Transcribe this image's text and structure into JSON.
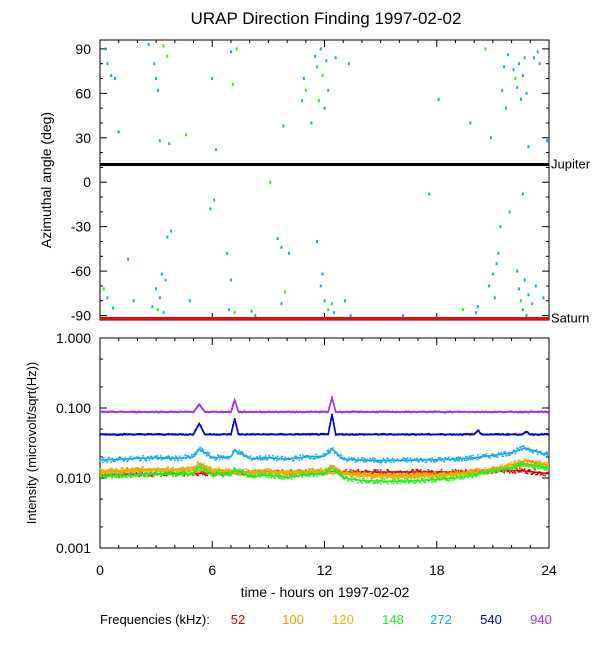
{
  "title": "URAP Direction Finding  1997-02-02",
  "chart_data": [
    {
      "type": "scatter",
      "ylabel": "Azimuthal angle (deg)",
      "xlim": [
        0,
        24
      ],
      "ylim": [
        -93,
        96
      ],
      "x_ticks": [
        0,
        6,
        12,
        18,
        24
      ],
      "y_ticks": [
        {
          "value": 90,
          "label": "90"
        },
        {
          "value": 60,
          "label": "60"
        },
        {
          "value": 30,
          "label": "30"
        },
        {
          "value": 0,
          "label": "0"
        },
        {
          "value": -30,
          "label": "-30"
        },
        {
          "value": -60,
          "label": "-60"
        },
        {
          "value": -90,
          "label": "-90"
        }
      ],
      "reference_lines": [
        {
          "label": "Jupiter",
          "value": 12,
          "color": "#000000"
        },
        {
          "label": "Saturn",
          "value": -92,
          "color": "#ff0000"
        }
      ],
      "points": [
        [
          0.3,
          90,
          "cyan"
        ],
        [
          0.4,
          80,
          "cyan"
        ],
        [
          0.6,
          72,
          "cyan"
        ],
        [
          0.8,
          70,
          "cyan"
        ],
        [
          1.0,
          34,
          "cyan"
        ],
        [
          1.5,
          -52,
          "cyan"
        ],
        [
          1.8,
          -80,
          "cyan"
        ],
        [
          0.2,
          -72,
          "green"
        ],
        [
          0.4,
          -78,
          "cyan"
        ],
        [
          0.7,
          -85,
          "cyan"
        ],
        [
          2.6,
          93,
          "cyan"
        ],
        [
          2.9,
          80,
          "cyan"
        ],
        [
          3.0,
          70,
          "cyan"
        ],
        [
          3.1,
          62,
          "cyan"
        ],
        [
          3.2,
          28,
          "cyan"
        ],
        [
          3.4,
          92,
          "green"
        ],
        [
          3.6,
          85,
          "green"
        ],
        [
          3.7,
          26,
          "cyan"
        ],
        [
          3.8,
          -33,
          "cyan"
        ],
        [
          3.6,
          -37,
          "cyan"
        ],
        [
          3.3,
          -62,
          "cyan"
        ],
        [
          3.5,
          -66,
          "cyan"
        ],
        [
          3.0,
          -72,
          "cyan"
        ],
        [
          3.2,
          -78,
          "cyan"
        ],
        [
          3.1,
          -86,
          "green"
        ],
        [
          3.4,
          -88,
          "cyan"
        ],
        [
          2.8,
          -84,
          "cyan"
        ],
        [
          4.6,
          32,
          "green"
        ],
        [
          4.8,
          -80,
          "cyan"
        ],
        [
          6.0,
          70,
          "cyan"
        ],
        [
          6.2,
          22,
          "cyan"
        ],
        [
          5.9,
          -18,
          "cyan"
        ],
        [
          6.1,
          -12,
          "cyan"
        ],
        [
          7.0,
          88,
          "cyan"
        ],
        [
          7.3,
          90,
          "green"
        ],
        [
          7.1,
          66,
          "green"
        ],
        [
          6.8,
          -48,
          "cyan"
        ],
        [
          7.0,
          -66,
          "cyan"
        ],
        [
          6.9,
          -86,
          "cyan"
        ],
        [
          7.2,
          -88,
          "green"
        ],
        [
          8.1,
          -87,
          "cyan"
        ],
        [
          8.3,
          -90,
          "cyan"
        ],
        [
          9.5,
          -38,
          "cyan"
        ],
        [
          9.7,
          -82,
          "cyan"
        ],
        [
          9.9,
          -74,
          "green"
        ],
        [
          9.8,
          38,
          "cyan"
        ],
        [
          9.7,
          -44,
          "cyan"
        ],
        [
          10.1,
          -48,
          "cyan"
        ],
        [
          9.1,
          0,
          "green"
        ],
        [
          10.9,
          70,
          "cyan"
        ],
        [
          11.0,
          62,
          "green"
        ],
        [
          10.8,
          55,
          "cyan"
        ],
        [
          11.3,
          40,
          "cyan"
        ],
        [
          11.5,
          85,
          "cyan"
        ],
        [
          11.6,
          78,
          "green"
        ],
        [
          11.8,
          90,
          "cyan"
        ],
        [
          11.9,
          72,
          "green"
        ],
        [
          12.1,
          82,
          "cyan"
        ],
        [
          12.0,
          50,
          "cyan"
        ],
        [
          11.7,
          55,
          "green"
        ],
        [
          12.2,
          62,
          "cyan"
        ],
        [
          11.9,
          -62,
          "cyan"
        ],
        [
          11.8,
          -70,
          "cyan"
        ],
        [
          12.0,
          -80,
          "cyan"
        ],
        [
          12.2,
          -86,
          "green"
        ],
        [
          12.4,
          -82,
          "green"
        ],
        [
          12.5,
          -88,
          "cyan"
        ],
        [
          11.6,
          -40,
          "cyan"
        ],
        [
          12.6,
          84,
          "cyan"
        ],
        [
          13.3,
          80,
          "cyan"
        ],
        [
          13.1,
          -80,
          "cyan"
        ],
        [
          13.4,
          -90,
          "cyan"
        ],
        [
          19.8,
          40,
          "cyan"
        ],
        [
          20.1,
          -88,
          "cyan"
        ],
        [
          20.2,
          -84,
          "cyan"
        ],
        [
          20.6,
          90,
          "green"
        ],
        [
          20.9,
          30,
          "cyan"
        ],
        [
          21.0,
          -62,
          "cyan"
        ],
        [
          20.8,
          -70,
          "cyan"
        ],
        [
          21.1,
          -78,
          "cyan"
        ],
        [
          21.2,
          -55,
          "cyan"
        ],
        [
          21.3,
          -48,
          "cyan"
        ],
        [
          21.4,
          -30,
          "cyan"
        ],
        [
          21.5,
          62,
          "cyan"
        ],
        [
          21.6,
          78,
          "cyan"
        ],
        [
          21.7,
          50,
          "cyan"
        ],
        [
          21.8,
          86,
          "cyan"
        ],
        [
          21.9,
          -20,
          "cyan"
        ],
        [
          22.1,
          76,
          "cyan"
        ],
        [
          22.2,
          70,
          "green"
        ],
        [
          22.3,
          64,
          "cyan"
        ],
        [
          22.4,
          80,
          "cyan"
        ],
        [
          22.5,
          56,
          "cyan"
        ],
        [
          22.6,
          72,
          "cyan"
        ],
        [
          22.7,
          84,
          "cyan"
        ],
        [
          22.8,
          60,
          "cyan"
        ],
        [
          22.3,
          -60,
          "cyan"
        ],
        [
          22.4,
          -72,
          "cyan"
        ],
        [
          22.5,
          -80,
          "green"
        ],
        [
          22.6,
          -86,
          "cyan"
        ],
        [
          22.7,
          -66,
          "cyan"
        ],
        [
          22.8,
          -90,
          "cyan"
        ],
        [
          22.9,
          -76,
          "cyan"
        ],
        [
          23.1,
          -82,
          "cyan"
        ],
        [
          23.3,
          -70,
          "cyan"
        ],
        [
          23.5,
          80,
          "cyan"
        ],
        [
          23.4,
          88,
          "cyan"
        ],
        [
          23.2,
          84,
          "cyan"
        ],
        [
          22.9,
          24,
          "cyan"
        ],
        [
          22.6,
          -8,
          "cyan"
        ],
        [
          23.7,
          -78,
          "cyan"
        ],
        [
          23.9,
          28,
          "cyan"
        ],
        [
          18.1,
          56,
          "cyan"
        ],
        [
          17.6,
          -8,
          "cyan"
        ],
        [
          19.4,
          -86,
          "green"
        ],
        [
          16.2,
          -90,
          "cyan"
        ]
      ]
    },
    {
      "type": "line",
      "xlabel": "time - hours on 1997-02-02",
      "ylabel": "Intensity (microvolt/sqrt(Hz))",
      "xlim": [
        0,
        24
      ],
      "ylim": [
        0.001,
        1.0
      ],
      "log_y": true,
      "x_ticks": [
        {
          "value": 0,
          "label": "0"
        },
        {
          "value": 6,
          "label": "6"
        },
        {
          "value": 12,
          "label": "12"
        },
        {
          "value": 18,
          "label": "18"
        },
        {
          "value": 24,
          "label": "24"
        }
      ],
      "y_ticks": [
        {
          "value": 1.0,
          "label": "1.000"
        },
        {
          "value": 0.1,
          "label": "0.100"
        },
        {
          "value": 0.01,
          "label": "0.010"
        },
        {
          "value": 0.001,
          "label": "0.001"
        }
      ],
      "legend_title": "Frequencies (kHz):",
      "series": [
        {
          "name": "52",
          "color": "#dd0000",
          "x": [
            0,
            3,
            6,
            9,
            12,
            15,
            18,
            21,
            22.5,
            24
          ],
          "y": [
            0.0112,
            0.0114,
            0.0118,
            0.012,
            0.0122,
            0.0122,
            0.0122,
            0.0125,
            0.0128,
            0.0115
          ]
        },
        {
          "name": "100",
          "color": "#ff9900",
          "x": [
            0,
            1,
            2,
            3,
            4,
            5,
            5.3,
            6,
            7,
            8,
            9,
            10,
            11,
            12,
            12.4,
            13,
            14,
            15,
            16,
            17,
            18,
            19,
            20,
            21,
            22,
            22.7,
            23.3,
            24
          ],
          "y": [
            0.0125,
            0.0128,
            0.0132,
            0.0135,
            0.0132,
            0.0135,
            0.016,
            0.013,
            0.0128,
            0.0122,
            0.0125,
            0.012,
            0.0125,
            0.0128,
            0.015,
            0.012,
            0.0112,
            0.011,
            0.0108,
            0.011,
            0.0112,
            0.0115,
            0.0125,
            0.0135,
            0.0155,
            0.0175,
            0.0165,
            0.0155
          ]
        },
        {
          "name": "120",
          "color": "#ddbb00",
          "x": [
            0,
            1,
            2,
            3,
            4,
            5,
            6,
            7,
            8,
            9,
            10,
            11,
            12,
            13,
            14,
            15,
            16,
            17,
            18,
            19,
            20,
            21,
            22,
            23,
            24
          ],
          "y": [
            0.012,
            0.0124,
            0.0126,
            0.0128,
            0.0126,
            0.013,
            0.0125,
            0.0122,
            0.0118,
            0.012,
            0.0116,
            0.012,
            0.0122,
            0.0116,
            0.0108,
            0.0106,
            0.0104,
            0.0106,
            0.0108,
            0.011,
            0.0118,
            0.0128,
            0.0145,
            0.015,
            0.0142
          ]
        },
        {
          "name": "148",
          "color": "#22ee22",
          "x": [
            0,
            1,
            2,
            3,
            4,
            5,
            5.3,
            6,
            7,
            7.2,
            8,
            9,
            10,
            11,
            12,
            12.4,
            13,
            14,
            15,
            16,
            17,
            18,
            19,
            20,
            21,
            22,
            22.7,
            23.3,
            24
          ],
          "y": [
            0.0105,
            0.0108,
            0.011,
            0.0115,
            0.0112,
            0.0118,
            0.0145,
            0.0112,
            0.0115,
            0.0135,
            0.0105,
            0.011,
            0.0102,
            0.0112,
            0.0118,
            0.014,
            0.01,
            0.0092,
            0.009,
            0.009,
            0.0092,
            0.0095,
            0.01,
            0.011,
            0.0125,
            0.014,
            0.016,
            0.015,
            0.0135
          ]
        },
        {
          "name": "272",
          "color": "#11aaee",
          "x": [
            0,
            1,
            2,
            3,
            4,
            5,
            5.3,
            6,
            7,
            7.2,
            8,
            9,
            10,
            11,
            12,
            12.4,
            13,
            14,
            15,
            16,
            17,
            18,
            19,
            20,
            21,
            22,
            22.7,
            23.3,
            24
          ],
          "y": [
            0.018,
            0.0185,
            0.019,
            0.0195,
            0.019,
            0.02,
            0.026,
            0.0195,
            0.02,
            0.025,
            0.019,
            0.0195,
            0.0185,
            0.02,
            0.0205,
            0.026,
            0.0185,
            0.018,
            0.0178,
            0.0178,
            0.018,
            0.0182,
            0.0185,
            0.0195,
            0.021,
            0.023,
            0.027,
            0.024,
            0.021
          ]
        },
        {
          "name": "540",
          "color": "#0000dd",
          "x": [
            0,
            3,
            5,
            5.3,
            5.6,
            7,
            7.2,
            7.4,
            12.2,
            12.4,
            12.6,
            20,
            20.2,
            20.4,
            22.6,
            22.8,
            23,
            24
          ],
          "y": [
            0.042,
            0.042,
            0.042,
            0.06,
            0.042,
            0.042,
            0.07,
            0.042,
            0.042,
            0.08,
            0.042,
            0.042,
            0.048,
            0.042,
            0.042,
            0.046,
            0.042,
            0.042
          ]
        },
        {
          "name": "940",
          "color": "#9933ee",
          "x": [
            0,
            3,
            5,
            5.3,
            5.6,
            7,
            7.2,
            7.4,
            12.2,
            12.4,
            12.6,
            24
          ],
          "y": [
            0.088,
            0.088,
            0.088,
            0.112,
            0.088,
            0.088,
            0.13,
            0.088,
            0.088,
            0.14,
            0.088,
            0.088
          ]
        }
      ]
    }
  ]
}
